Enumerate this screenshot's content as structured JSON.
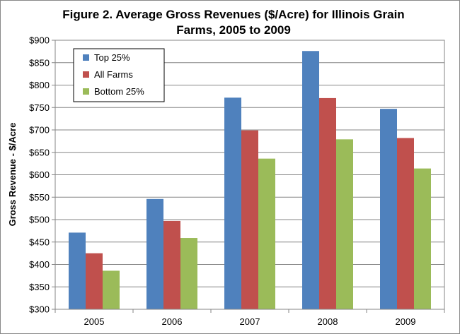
{
  "chart_data": {
    "type": "bar",
    "title_line1": "Figure 2. Average Gross Revenues ($/Acre) for Illinois Grain",
    "title_line2": "Farms, 2005 to 2009",
    "xlabel": "",
    "ylabel": "Gross Revenue - $/Acre",
    "ylim": [
      300,
      900
    ],
    "y_ticks": [
      300,
      350,
      400,
      450,
      500,
      550,
      600,
      650,
      700,
      750,
      800,
      850,
      900
    ],
    "y_tick_labels": [
      "$300",
      "$350",
      "$400",
      "$450",
      "$500",
      "$550",
      "$600",
      "$650",
      "$700",
      "$750",
      "$800",
      "$850",
      "$900"
    ],
    "categories": [
      "2005",
      "2006",
      "2007",
      "2008",
      "2009"
    ],
    "series": [
      {
        "name": "Top 25%",
        "color": "#4F81BD",
        "values": [
          471,
          546,
          772,
          876,
          747
        ]
      },
      {
        "name": "All Farms",
        "color": "#C0504D",
        "values": [
          425,
          497,
          699,
          771,
          682
        ]
      },
      {
        "name": "Bottom 25%",
        "color": "#9BBB59",
        "values": [
          386,
          459,
          636,
          679,
          614
        ]
      }
    ],
    "grid": true,
    "legend_position": "top-left"
  }
}
